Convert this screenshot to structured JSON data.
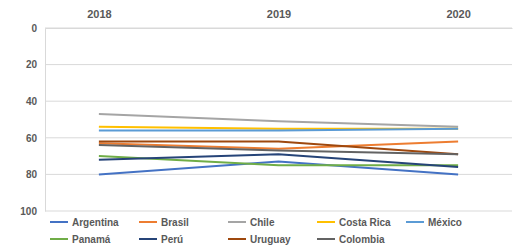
{
  "chart_data": {
    "type": "line",
    "categories": [
      "2018",
      "2019",
      "2020"
    ],
    "ylim": [
      100,
      0
    ],
    "yticks": [
      0,
      20,
      40,
      60,
      80,
      100
    ],
    "grid": true,
    "legend": "bottom",
    "series": [
      {
        "name": "Argentina",
        "color": "#4472c4",
        "values": [
          80,
          73,
          80
        ]
      },
      {
        "name": "Brasil",
        "color": "#ed7d31",
        "values": [
          63,
          66,
          62
        ]
      },
      {
        "name": "Chile",
        "color": "#a5a5a5",
        "values": [
          47,
          51,
          54
        ]
      },
      {
        "name": "Costa Rica",
        "color": "#ffc000",
        "values": [
          54,
          55,
          55
        ]
      },
      {
        "name": "México",
        "color": "#5b9bd5",
        "values": [
          56,
          56,
          55
        ]
      },
      {
        "name": "Panamá",
        "color": "#70ad47",
        "values": [
          70,
          75,
          75
        ]
      },
      {
        "name": "Perú",
        "color": "#264478",
        "values": [
          72,
          69,
          76
        ]
      },
      {
        "name": "Uruguay",
        "color": "#9e480e",
        "values": [
          62,
          62,
          69
        ]
      },
      {
        "name": "Colombia",
        "color": "#636363",
        "values": [
          64,
          67,
          69
        ]
      }
    ]
  }
}
